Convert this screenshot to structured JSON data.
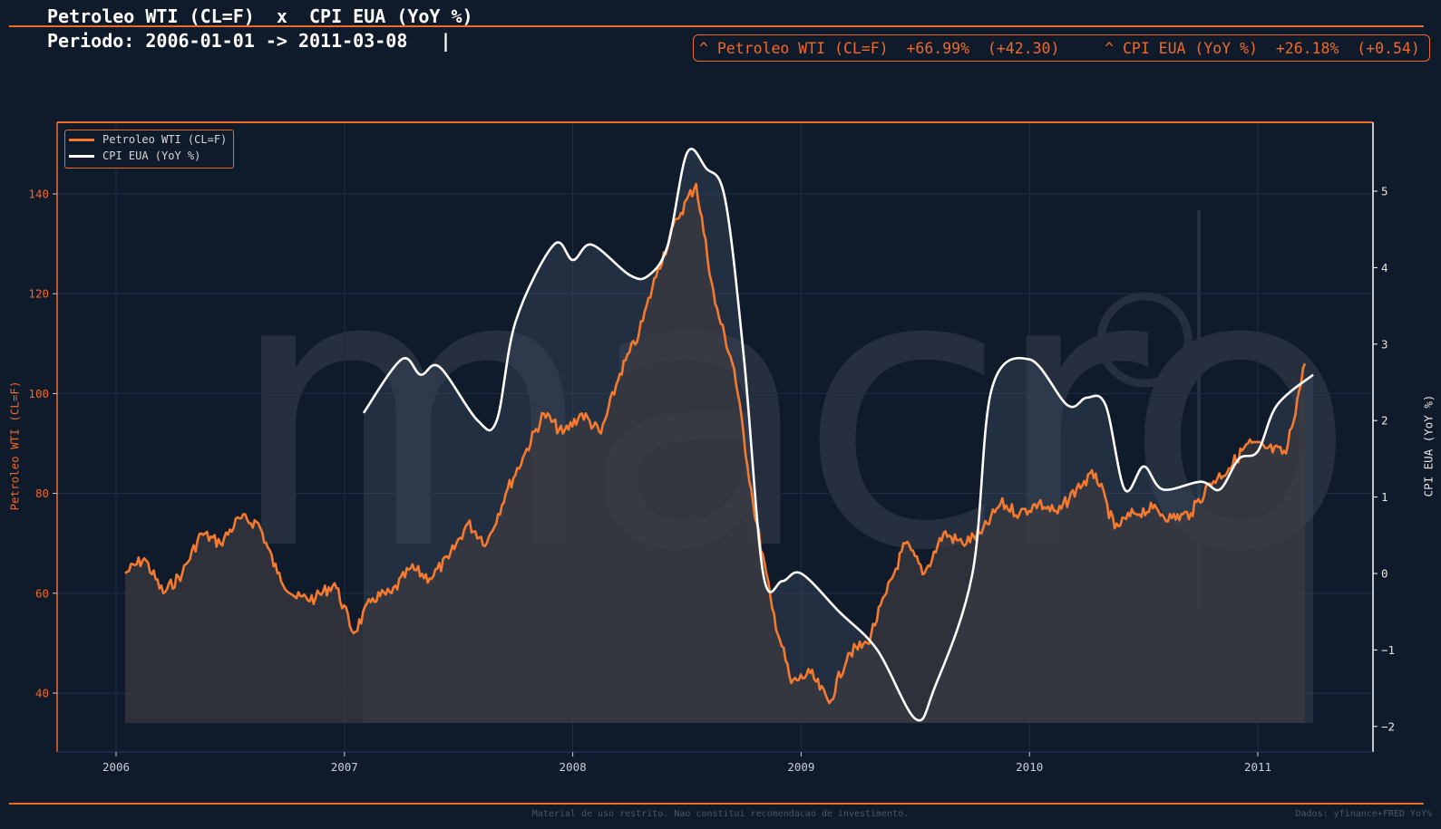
{
  "header": {
    "title": "Petroleo WTI (CL=F)  x  CPI EUA (YoY %)",
    "period": "Periodo: 2006-01-01 -> 2011-03-08   |"
  },
  "stats": {
    "oil": {
      "label": "^ Petroleo WTI (CL=F)",
      "pct": "+66.99%",
      "abs": "(+42.30)"
    },
    "cpi": {
      "label": "^ CPI EUA (YoY %)",
      "pct": "+26.18%",
      "abs": "(+0.54)"
    },
    "color": "#ee6a2a"
  },
  "footer": {
    "disclaimer": "Material de uso restrito. Nao constitui recomendacao de investimento.",
    "source": "Dados: yfinance+FRED YoY%"
  },
  "watermark": "macro",
  "chart_data": {
    "type": "line",
    "title": "Petroleo WTI (CL=F)  x  CPI EUA (YoY %)",
    "xlabel": "",
    "x_ticks": [
      "2006",
      "2007",
      "2008",
      "2009",
      "2010",
      "2011"
    ],
    "legend": [
      "Petroleo WTI (CL=F)",
      "CPI EUA (YoY %)"
    ],
    "legend_position": "upper left",
    "grid": true,
    "y_left": {
      "label": "Petroleo WTI (CL=F)",
      "ticks": [
        40,
        60,
        80,
        100,
        120,
        140
      ],
      "range": [
        29,
        155
      ],
      "color": "#ee6a2a"
    },
    "y_right": {
      "label": "CPI EUA (YoY %)",
      "ticks": [
        -2,
        -1,
        0,
        1,
        2,
        3,
        4,
        5
      ],
      "range": [
        -2.3,
        5.9
      ],
      "color": "#ffffff"
    },
    "series": [
      {
        "name": "Petroleo WTI (CL=F)",
        "axis": "left",
        "color": "#f47a30",
        "x": [
          "2006-01",
          "2006-02",
          "2006-03",
          "2006-04",
          "2006-05",
          "2006-06",
          "2006-07",
          "2006-08",
          "2006-09",
          "2006-10",
          "2006-11",
          "2006-12",
          "2007-01",
          "2007-02",
          "2007-03",
          "2007-04",
          "2007-05",
          "2007-06",
          "2007-07",
          "2007-08",
          "2007-09",
          "2007-10",
          "2007-11",
          "2007-12",
          "2008-01",
          "2008-02",
          "2008-03",
          "2008-04",
          "2008-05",
          "2008-06",
          "2008-07",
          "2008-08",
          "2008-09",
          "2008-10",
          "2008-11",
          "2008-12",
          "2009-01",
          "2009-02",
          "2009-03",
          "2009-04",
          "2009-05",
          "2009-06",
          "2009-07",
          "2009-08",
          "2009-09",
          "2009-10",
          "2009-11",
          "2009-12",
          "2010-01",
          "2010-02",
          "2010-03",
          "2010-04",
          "2010-05",
          "2010-06",
          "2010-07",
          "2010-08",
          "2010-09",
          "2010-10",
          "2010-11",
          "2010-12",
          "2011-01",
          "2011-02",
          "2011-03"
        ],
        "values": [
          64,
          67,
          60,
          64,
          72,
          70,
          75,
          74,
          64,
          59,
          59,
          62,
          52,
          59,
          60,
          65,
          63,
          67,
          74,
          70,
          80,
          88,
          96,
          92,
          96,
          92,
          104,
          112,
          125,
          135,
          142,
          118,
          105,
          78,
          57,
          42,
          44,
          38,
          48,
          50,
          60,
          70,
          64,
          72,
          70,
          72,
          78,
          76,
          78,
          76,
          81,
          84,
          73,
          76,
          77,
          75,
          76,
          82,
          85,
          90,
          89,
          88,
          106
        ]
      },
      {
        "name": "CPI EUA (YoY %)",
        "axis": "right",
        "color": "#ffffff",
        "x": [
          "2007-02",
          "2007-04",
          "2007-05",
          "2007-06",
          "2007-08",
          "2007-09",
          "2007-10",
          "2007-12",
          "2008-01",
          "2008-02",
          "2008-04",
          "2008-05",
          "2008-06",
          "2008-07",
          "2008-08",
          "2008-09",
          "2008-10",
          "2008-11",
          "2008-12",
          "2009-01",
          "2009-03",
          "2009-05",
          "2009-07",
          "2009-08",
          "2009-10",
          "2009-11",
          "2010-01",
          "2010-03",
          "2010-04",
          "2010-05",
          "2010-06",
          "2010-07",
          "2010-08",
          "2010-10",
          "2010-11",
          "2010-12",
          "2011-01",
          "2011-02",
          "2011-04"
        ],
        "values": [
          2.1,
          2.8,
          2.6,
          2.7,
          2.0,
          2.0,
          3.3,
          4.3,
          4.1,
          4.3,
          3.9,
          3.9,
          4.3,
          5.5,
          5.3,
          4.9,
          2.8,
          0.0,
          -0.1,
          0.0,
          -0.5,
          -1.0,
          -1.9,
          -1.5,
          0.0,
          2.4,
          2.8,
          2.2,
          2.3,
          2.2,
          1.1,
          1.4,
          1.1,
          1.2,
          1.1,
          1.5,
          1.6,
          2.2,
          2.6
        ]
      }
    ]
  }
}
